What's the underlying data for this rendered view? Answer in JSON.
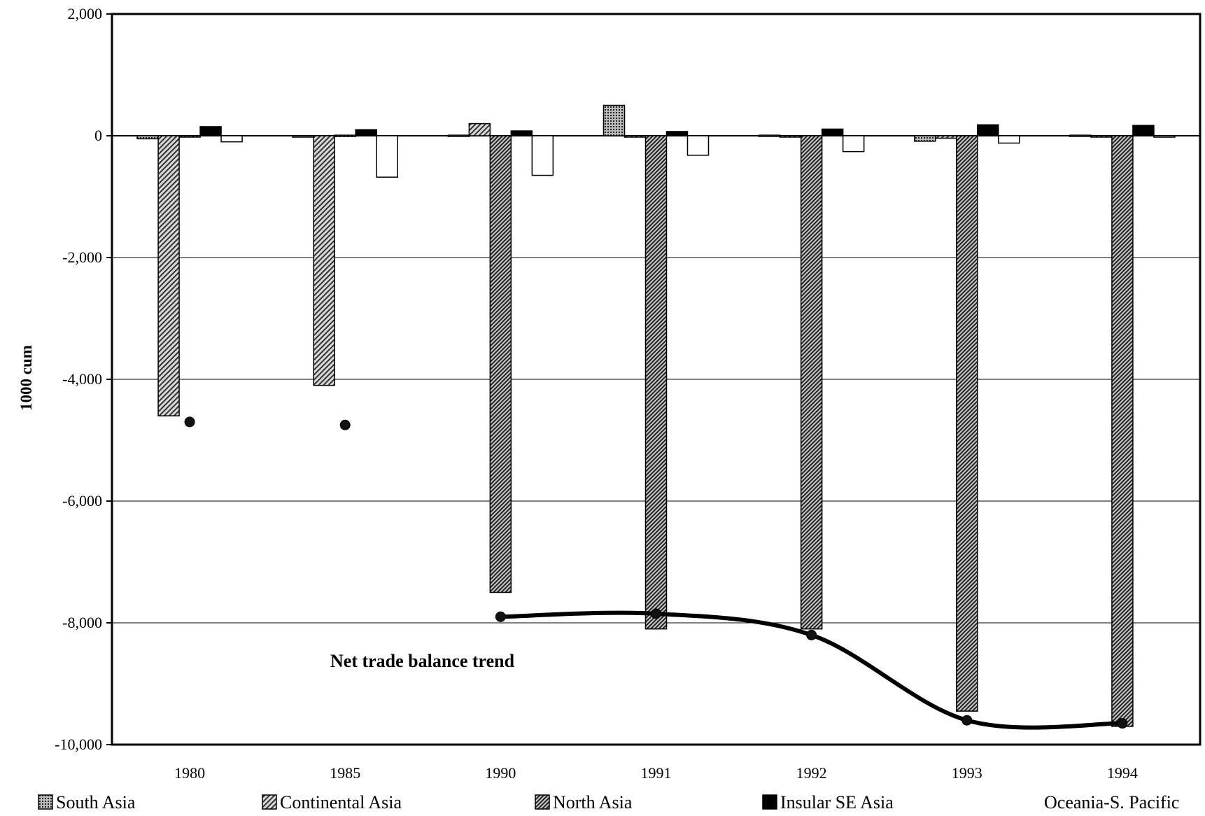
{
  "chart_data": {
    "type": "bar",
    "ylabel": "1000 cum",
    "ylim": [
      -10000,
      2000
    ],
    "yticks": [
      2000,
      0,
      -2000,
      -4000,
      -6000,
      -8000,
      -10000
    ],
    "ytick_labels": [
      "2,000",
      "0",
      "-2,000",
      "-4,000",
      "-6,000",
      "-8,000",
      "-10,000"
    ],
    "grid": true,
    "legend_position": "bottom",
    "categories": [
      "1980",
      "1985",
      "1990",
      "1991",
      "1992",
      "1993",
      "1994"
    ],
    "series": [
      {
        "name": "South Asia",
        "values": [
          -50,
          -20,
          10,
          500,
          10,
          -90,
          10
        ],
        "color": "#555555",
        "pattern": "dotted"
      },
      {
        "name": "Continental Asia",
        "values": [
          -4600,
          -4100,
          200,
          -10,
          -20,
          -40,
          0
        ],
        "color": "#777777",
        "pattern": "hatch"
      },
      {
        "name": "North Asia",
        "values": [
          -10,
          10,
          -7500,
          -8100,
          -8100,
          -9450,
          -9700
        ],
        "color": "#666666",
        "pattern": "hatch-dense"
      },
      {
        "name": "Insular SE Asia",
        "values": [
          150,
          100,
          80,
          70,
          110,
          180,
          170
        ],
        "color": "#000000",
        "pattern": "solid"
      },
      {
        "name": "Oceania-S. Pacific",
        "values": [
          -100,
          -680,
          -650,
          -320,
          -260,
          -120,
          0
        ],
        "color": "#ffffff",
        "pattern": "open"
      }
    ],
    "trend_line": {
      "label": "Net trade balance trend",
      "points": [
        {
          "x": "1980",
          "y": -4700
        },
        {
          "x": "1985",
          "y": -4750
        },
        {
          "x": "1990",
          "y": -7900
        },
        {
          "x": "1991",
          "y": -7850
        },
        {
          "x": "1992",
          "y": -8200
        },
        {
          "x": "1993",
          "y": -9600
        },
        {
          "x": "1994",
          "y": -9650
        }
      ],
      "connected_from": "1990"
    }
  }
}
